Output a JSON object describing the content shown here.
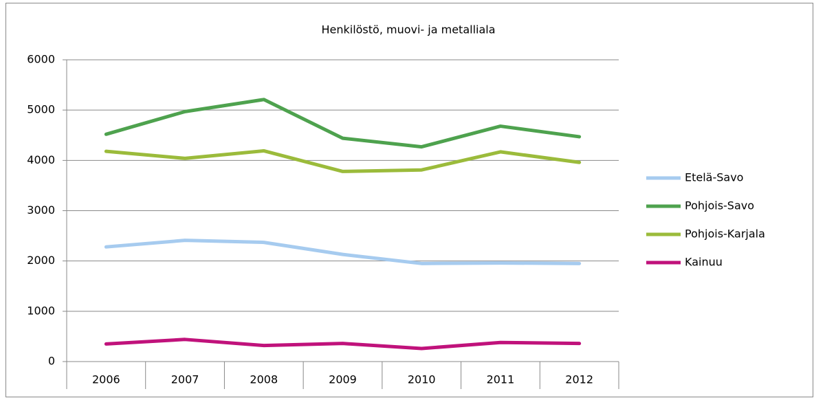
{
  "chart_data": {
    "type": "line",
    "title": "Henkilöstö, muovi- ja metalliala",
    "categories": [
      "2006",
      "2007",
      "2008",
      "2009",
      "2010",
      "2011",
      "2012"
    ],
    "series": [
      {
        "name": "Etelä-Savo",
        "color": "#a6cbef",
        "values": [
          2280,
          2410,
          2370,
          2130,
          1950,
          1960,
          1950
        ]
      },
      {
        "name": "Pohjois-Savo",
        "color": "#4ea24e",
        "values": [
          4520,
          4970,
          5210,
          4440,
          4270,
          4680,
          4470
        ]
      },
      {
        "name": "Pohjois-Karjala",
        "color": "#9bbb3b",
        "values": [
          4180,
          4040,
          4190,
          3780,
          3810,
          4170,
          3960
        ]
      },
      {
        "name": "Kainuu",
        "color": "#c0127b",
        "values": [
          350,
          440,
          320,
          360,
          260,
          380,
          360
        ]
      }
    ],
    "ylim": [
      0,
      6000
    ],
    "yticks": [
      0,
      1000,
      2000,
      3000,
      4000,
      5000,
      6000
    ],
    "grid": true,
    "legend": "right"
  }
}
